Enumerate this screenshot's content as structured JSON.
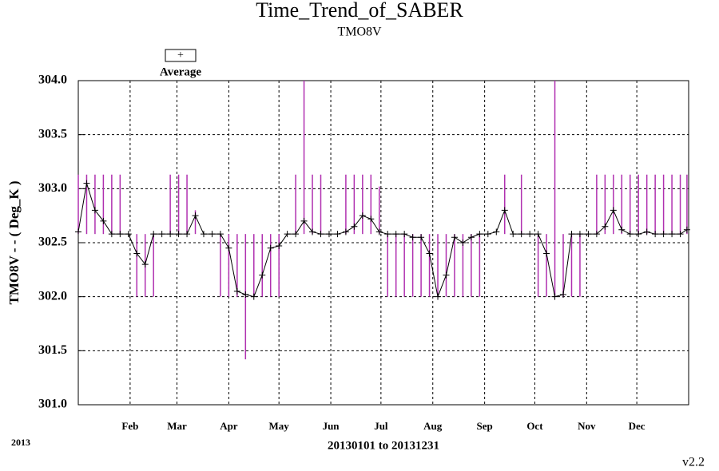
{
  "chart_data": {
    "type": "line",
    "title": "Time_Trend_of_SABER",
    "subtitle": "TMO8V",
    "y_label": "TMO8V  - - ( Deg_K )",
    "x_label": "20130101 to 20131231",
    "year_label": "2013",
    "version": "v2.2",
    "xlim": [
      1,
      366
    ],
    "ylim": [
      301.0,
      304.0
    ],
    "xticks": [
      {
        "value": 32,
        "label": "Feb"
      },
      {
        "value": 60,
        "label": "Mar"
      },
      {
        "value": 91,
        "label": "Apr"
      },
      {
        "value": 121,
        "label": "May"
      },
      {
        "value": 152,
        "label": "Jun"
      },
      {
        "value": 182,
        "label": "Jul"
      },
      {
        "value": 213,
        "label": "Aug"
      },
      {
        "value": 244,
        "label": "Sep"
      },
      {
        "value": 274,
        "label": "Oct"
      },
      {
        "value": 305,
        "label": "Nov"
      },
      {
        "value": 335,
        "label": "Dec"
      }
    ],
    "yticks": [
      {
        "value": 301.0,
        "label": "301.0"
      },
      301.5,
      {
        "value": 302.0,
        "label": "302.0"
      },
      302.5,
      {
        "value": 303.0,
        "label": "303.0"
      },
      303.5,
      {
        "value": 304.0,
        "label": "304.0"
      }
    ],
    "grid": true,
    "x": [
      1,
      6,
      11,
      16,
      21,
      26,
      31,
      36,
      41,
      46,
      51,
      56,
      61,
      66,
      71,
      76,
      81,
      86,
      91,
      96,
      101,
      106,
      111,
      116,
      121,
      126,
      131,
      136,
      141,
      146,
      151,
      156,
      161,
      166,
      171,
      176,
      181,
      186,
      191,
      196,
      201,
      206,
      211,
      216,
      221,
      226,
      231,
      236,
      241,
      246,
      251,
      256,
      261,
      266,
      271,
      276,
      281,
      286,
      291,
      296,
      301,
      306,
      311,
      316,
      321,
      326,
      331,
      336,
      341,
      346,
      351,
      356,
      361,
      365
    ],
    "series": [
      {
        "name": "Average",
        "color": "#000000",
        "marker": "+",
        "values": [
          302.6,
          303.05,
          302.8,
          302.7,
          302.58,
          302.58,
          302.58,
          302.4,
          302.3,
          302.58,
          302.58,
          302.58,
          302.58,
          302.58,
          302.75,
          302.58,
          302.58,
          302.58,
          302.45,
          302.05,
          302.02,
          302.0,
          302.2,
          302.45,
          302.47,
          302.58,
          302.58,
          302.7,
          302.6,
          302.58,
          302.58,
          302.58,
          302.6,
          302.65,
          302.75,
          302.72,
          302.6,
          302.58,
          302.58,
          302.58,
          302.55,
          302.55,
          302.4,
          302.0,
          302.2,
          302.55,
          302.5,
          302.55,
          302.58,
          302.58,
          302.6,
          302.8,
          302.58,
          302.58,
          302.58,
          302.58,
          302.4,
          302.0,
          302.02,
          302.58,
          302.58,
          302.58,
          302.58,
          302.65,
          302.8,
          302.62,
          302.58,
          302.58,
          302.6,
          302.58,
          302.58,
          302.58,
          302.58,
          302.62
        ]
      }
    ],
    "ranges": {
      "color": "#b030b0",
      "low": [
        302.58,
        302.58,
        302.58,
        302.58,
        302.58,
        302.58,
        302.58,
        302.0,
        302.0,
        302.0,
        302.58,
        302.58,
        302.58,
        302.58,
        302.58,
        302.58,
        302.58,
        302.0,
        302.0,
        302.0,
        301.42,
        302.0,
        302.0,
        302.0,
        302.0,
        302.58,
        302.58,
        302.58,
        302.58,
        302.58,
        302.58,
        302.58,
        302.58,
        302.58,
        302.58,
        302.58,
        302.58,
        302.0,
        302.0,
        302.0,
        302.0,
        302.0,
        302.0,
        302.0,
        302.0,
        302.0,
        302.0,
        302.0,
        302.0,
        302.58,
        302.58,
        302.58,
        302.58,
        302.58,
        302.58,
        302.0,
        302.0,
        302.0,
        302.0,
        302.0,
        302.0,
        302.58,
        302.58,
        302.58,
        302.58,
        302.58,
        302.58,
        302.58,
        302.58,
        302.58,
        302.58,
        302.58,
        302.58,
        302.58
      ],
      "high": [
        303.13,
        303.13,
        303.13,
        303.13,
        303.13,
        303.13,
        302.58,
        302.58,
        302.58,
        302.58,
        302.58,
        303.13,
        303.13,
        303.13,
        302.8,
        302.58,
        302.58,
        302.58,
        302.58,
        302.58,
        302.58,
        302.58,
        302.58,
        302.58,
        302.58,
        302.58,
        303.13,
        304.0,
        303.13,
        303.13,
        302.58,
        302.58,
        303.13,
        303.13,
        303.13,
        303.13,
        303.02,
        302.58,
        302.58,
        302.58,
        302.58,
        302.58,
        302.58,
        302.58,
        302.58,
        302.58,
        302.58,
        302.58,
        302.58,
        302.58,
        302.58,
        303.13,
        302.58,
        303.13,
        302.58,
        302.58,
        302.58,
        304.0,
        302.58,
        302.58,
        302.58,
        302.58,
        303.13,
        303.13,
        303.13,
        303.13,
        303.13,
        303.13,
        303.13,
        303.13,
        303.13,
        303.13,
        303.13,
        303.13
      ]
    }
  }
}
